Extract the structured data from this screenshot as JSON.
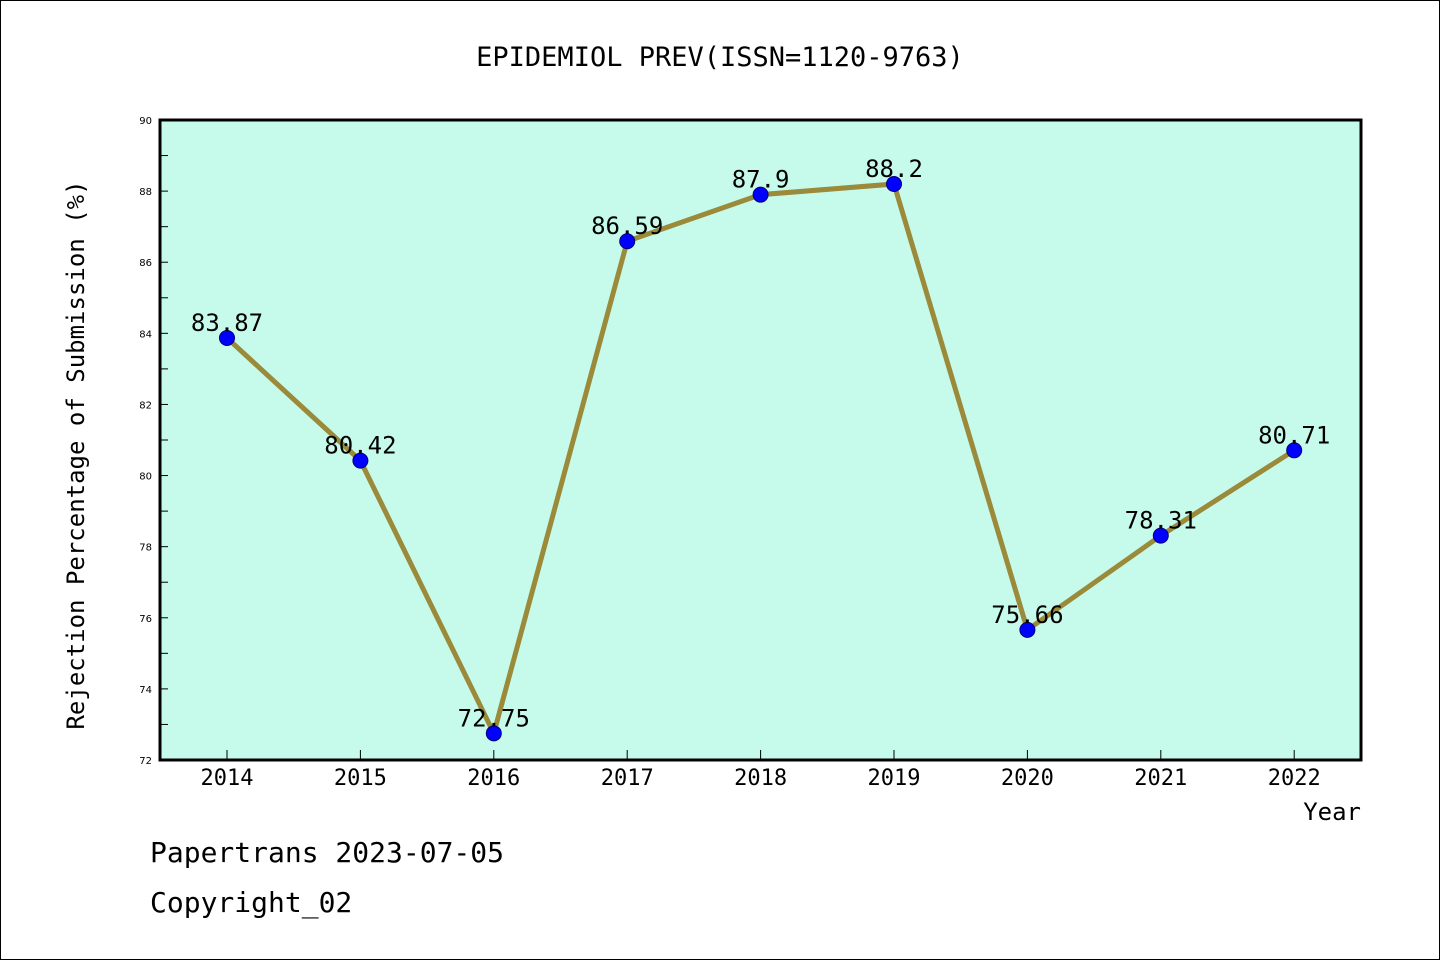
{
  "colors": {
    "plot_background": "#c6fbec",
    "line": "#9a8a3a",
    "marker_fill": "#0000ff",
    "marker_edge": "#00007a",
    "axis": "#000000"
  },
  "footer": {
    "line1": "Papertrans 2023-07-05",
    "line2": "Copyright_02"
  },
  "chart_data": {
    "type": "line",
    "title": "EPIDEMIOL PREV(ISSN=1120-9763)",
    "xlabel": "Year",
    "ylabel": "Rejection Percentage of Submission (%)",
    "categories": [
      "2014",
      "2015",
      "2016",
      "2017",
      "2018",
      "2019",
      "2020",
      "2021",
      "2022"
    ],
    "data_labels": [
      "83.87",
      "80.42",
      "72.75",
      "86.59",
      "87.9",
      "88.2",
      "75.66",
      "78.31",
      "80.71"
    ],
    "series": [
      {
        "values": [
          83.87,
          80.42,
          72.75,
          86.59,
          87.9,
          88.2,
          75.66,
          78.31,
          80.71
        ]
      }
    ],
    "ylim": [
      72,
      90
    ],
    "yticks": [
      72,
      74,
      76,
      78,
      80,
      82,
      84,
      86,
      88,
      90
    ],
    "grid": false,
    "legend": "none"
  }
}
